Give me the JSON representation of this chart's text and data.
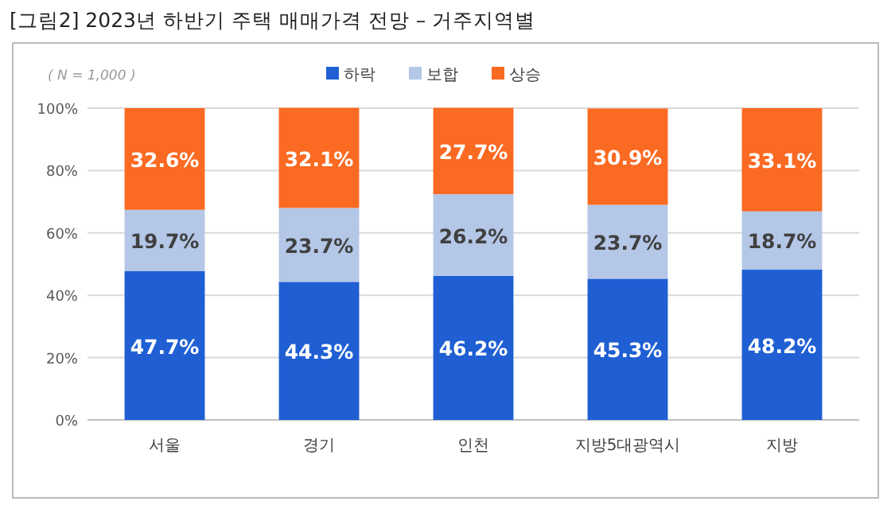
{
  "chart_data": {
    "type": "bar",
    "title": "[그림2] 2023년 하반기 주택 매매가격 전망 – 거주지역별",
    "subtitle": "( N = 1,000 )",
    "categories": [
      "서울",
      "경기",
      "인천",
      "지방5대광역시",
      "지방"
    ],
    "stacked": true,
    "ylim": [
      0,
      100
    ],
    "yticks": [
      {
        "value": 0,
        "label": "0%"
      },
      {
        "value": 20,
        "label": "20%"
      },
      {
        "value": 40,
        "label": "40%"
      },
      {
        "value": 60,
        "label": "60%"
      },
      {
        "value": 80,
        "label": "80%"
      },
      {
        "value": 100,
        "label": "100%"
      }
    ],
    "grid": "y",
    "legend": "top",
    "series": [
      {
        "name": "하락",
        "color": "#1f5fd3",
        "values": [
          47.7,
          44.3,
          46.2,
          45.3,
          48.2
        ],
        "value_labels": [
          "47.7%",
          "44.3%",
          "46.2%",
          "45.3%",
          "48.2%"
        ]
      },
      {
        "name": "보합",
        "color": "#b4c7e7",
        "values": [
          19.7,
          23.7,
          26.2,
          23.7,
          18.7
        ],
        "value_labels": [
          "19.7%",
          "23.7%",
          "26.2%",
          "23.7%",
          "18.7%"
        ]
      },
      {
        "name": "상승",
        "color": "#fb6a22",
        "values": [
          32.6,
          32.1,
          27.7,
          30.9,
          33.1
        ],
        "value_labels": [
          "32.6%",
          "32.1%",
          "27.7%",
          "30.9%",
          "33.1%"
        ]
      }
    ]
  }
}
